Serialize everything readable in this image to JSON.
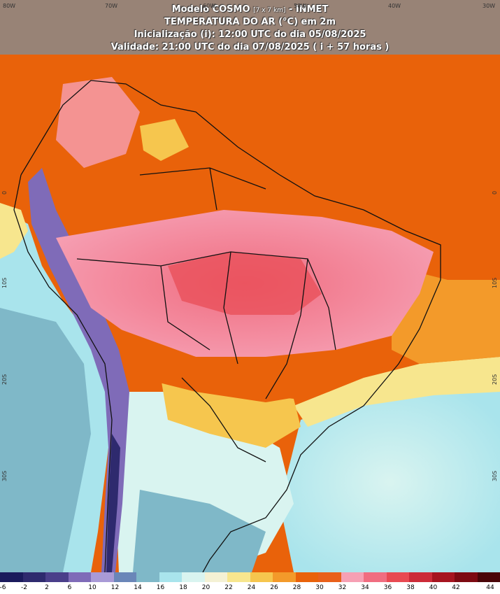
{
  "header": {
    "line1_main": "Modelo COSMO",
    "line1_small": "[7 x 7 km]",
    "line1_tail": "- INMET",
    "line2": "TEMPERATURA DO AR (°C) em 2m",
    "line3": "Inicialização (i): 12:00 UTC do dia 05/08/2025",
    "line4": "Validade: 21:00 UTC do dia 07/08/2025 ( i + 57 horas )"
  },
  "longitude_labels": [
    "80W",
    "70W",
    "60W",
    "50W",
    "40W",
    "30W"
  ],
  "latitude_labels": [
    "0",
    "10S",
    "20S",
    "30S"
  ],
  "legend": {
    "labels": [
      "-6",
      "-2",
      "2",
      "6",
      "10",
      "12",
      "14",
      "16",
      "18",
      "20",
      "22",
      "24",
      "26",
      "28",
      "30",
      "32",
      "34",
      "36",
      "38",
      "40",
      "42",
      "44"
    ],
    "colors": [
      "#1a1a5c",
      "#2e2a6e",
      "#4a3f8a",
      "#7f6bb8",
      "#a99ad6",
      "#6a86b8",
      "#7fb8c8",
      "#a9e4ec",
      "#d9f4f0",
      "#f4f1d4",
      "#f7e68e",
      "#f6c64e",
      "#f39a2a",
      "#e9620a",
      "#e9601a",
      "#f6a0b4",
      "#f06d80",
      "#e84a52",
      "#cc2b38",
      "#a6141f",
      "#7d0a12",
      "#4a0508"
    ]
  },
  "colors": {
    "ocean_north": "#e9620a",
    "warm_interior": "#f4a0b0",
    "hot_core": "#f0707e",
    "cool_south": "#a9e4ec",
    "cold_andes": "#7f6bb8"
  }
}
